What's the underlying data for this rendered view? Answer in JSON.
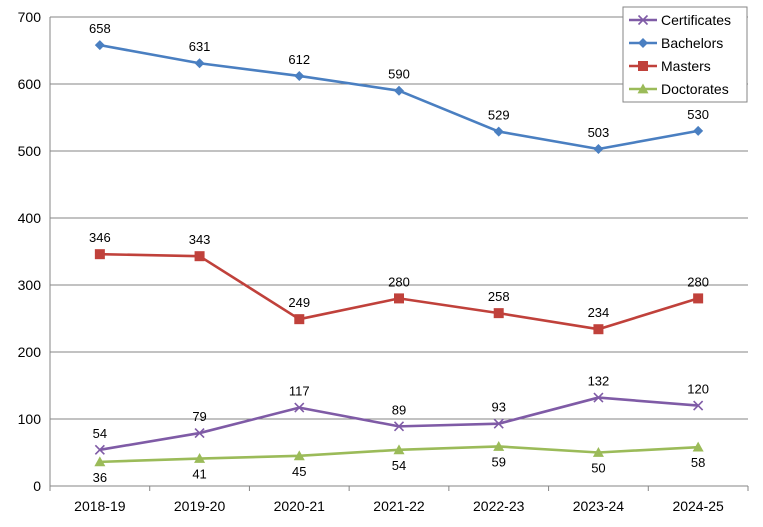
{
  "chart_data": {
    "type": "line",
    "title": "",
    "xlabel": "",
    "ylabel": "",
    "categories": [
      "2018-19",
      "2019-20",
      "2020-21",
      "2021-22",
      "2022-23",
      "2023-24",
      "2024-25"
    ],
    "ylim": [
      0,
      700
    ],
    "yticks": [
      0,
      100,
      200,
      300,
      400,
      500,
      600,
      700
    ],
    "grid": "horizontal",
    "legend": "top-right",
    "series": [
      {
        "name": "Certificates",
        "marker": "x",
        "color": "#7f5ba6",
        "values": [
          54,
          79,
          117,
          89,
          93,
          132,
          120
        ]
      },
      {
        "name": "Bachelors",
        "marker": "diamond",
        "color": "#4a7fc1",
        "values": [
          658,
          631,
          612,
          590,
          529,
          503,
          530
        ]
      },
      {
        "name": "Masters",
        "marker": "square",
        "color": "#c0413b",
        "values": [
          346,
          343,
          249,
          280,
          258,
          234,
          280
        ]
      },
      {
        "name": "Doctorates",
        "marker": "triangle",
        "color": "#9bbb59",
        "values": [
          36,
          41,
          45,
          54,
          59,
          50,
          58
        ]
      }
    ]
  }
}
